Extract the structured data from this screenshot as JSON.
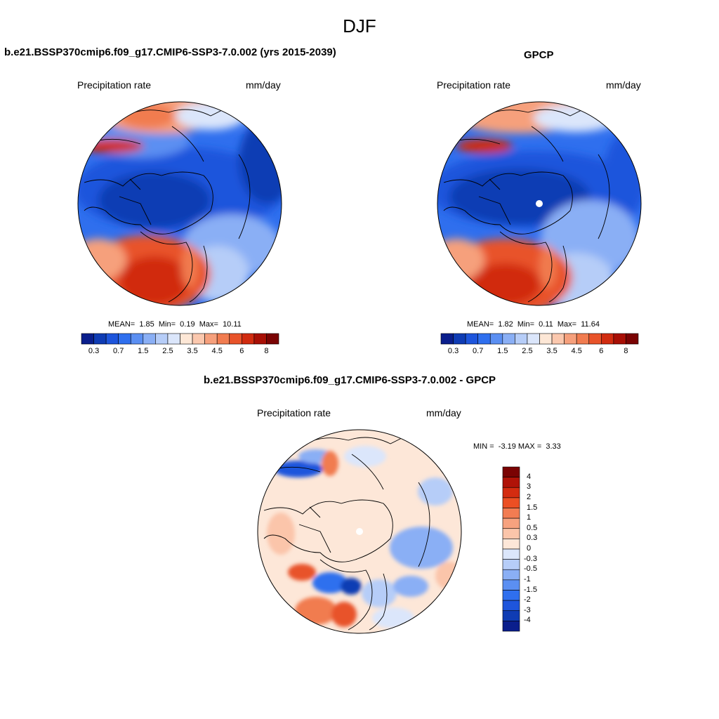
{
  "figure": {
    "season": "DJF",
    "left_panel": {
      "title": "b.e21.BSSP370cmip6.f09_g17.CMIP6-SSP3-7.0.002 (yrs 2015-2039)",
      "variable": "Precipitation rate",
      "units": "mm/day",
      "mean_label": "MEAN=",
      "mean": "1.85",
      "min_label": "Min=",
      "min": "0.19",
      "max_label": "Max=",
      "max": "10.11"
    },
    "right_panel": {
      "title": "GPCP",
      "variable": "Precipitation rate",
      "units": "mm/day",
      "mean_label": "MEAN=",
      "mean": "1.82",
      "min_label": "Min=",
      "min": "0.11",
      "max_label": "Max=",
      "max": "11.64"
    },
    "diff_panel": {
      "title": "b.e21.BSSP370cmip6.f09_g17.CMIP6-SSP3-7.0.002 - GPCP",
      "variable": "Precipitation rate",
      "units": "mm/day",
      "min_label": "MIN =",
      "min": "-3.19",
      "max_label": "MAX =",
      "max": "3.33"
    },
    "colorbars": {
      "precip_colors": [
        "#0a1e8c",
        "#0f3cb4",
        "#1e55dc",
        "#2f6fee",
        "#5b8ff2",
        "#8aaff5",
        "#b6cdf8",
        "#dbe6fb",
        "#fde7d6",
        "#fbc8ae",
        "#f6a07c",
        "#f17c50",
        "#e8532a",
        "#d12c10",
        "#a80f05",
        "#7a0303"
      ],
      "precip_ticks": [
        "0.3",
        "0.7",
        "1.5",
        "2.5",
        "3.5",
        "4.5",
        "6",
        "8"
      ],
      "diff_colors": [
        "#7a0303",
        "#b01308",
        "#d42c10",
        "#ec4f23",
        "#f27c52",
        "#f7a27f",
        "#fbc5aa",
        "#fde7d8",
        "#dbe6fb",
        "#b6cdf8",
        "#8aaff5",
        "#5b8ff2",
        "#2f6fee",
        "#1e55dc",
        "#0f3cb4",
        "#0a1e8c"
      ],
      "diff_ticks": [
        "4",
        "3",
        "2",
        "1.5",
        "1",
        "0.5",
        "0.3",
        "0",
        "-0.3",
        "-0.5",
        "-1",
        "-1.5",
        "-2",
        "-3",
        "-4"
      ]
    }
  },
  "chart_data": {
    "type": "heatmap",
    "projection": "north polar stereographic",
    "maps": [
      {
        "name": "model",
        "field": "Precipitation rate",
        "units": "mm/day",
        "mean": 1.85,
        "min": 0.19,
        "max": 10.11,
        "levels": [
          0.3,
          0.5,
          0.7,
          1,
          1.5,
          2,
          2.5,
          3,
          3.5,
          4,
          4.5,
          5,
          6,
          7,
          8
        ]
      },
      {
        "name": "GPCP",
        "field": "Precipitation rate",
        "units": "mm/day",
        "mean": 1.82,
        "min": 0.11,
        "max": 11.64,
        "levels": [
          0.3,
          0.5,
          0.7,
          1,
          1.5,
          2,
          2.5,
          3,
          3.5,
          4,
          4.5,
          5,
          6,
          7,
          8
        ]
      },
      {
        "name": "model - GPCP",
        "field": "Precipitation rate",
        "units": "mm/day",
        "min": -3.19,
        "max": 3.33,
        "levels": [
          -4,
          -3,
          -2,
          -1.5,
          -1,
          -0.5,
          -0.3,
          0,
          0.3,
          0.5,
          1,
          1.5,
          2,
          3,
          4
        ]
      }
    ]
  }
}
